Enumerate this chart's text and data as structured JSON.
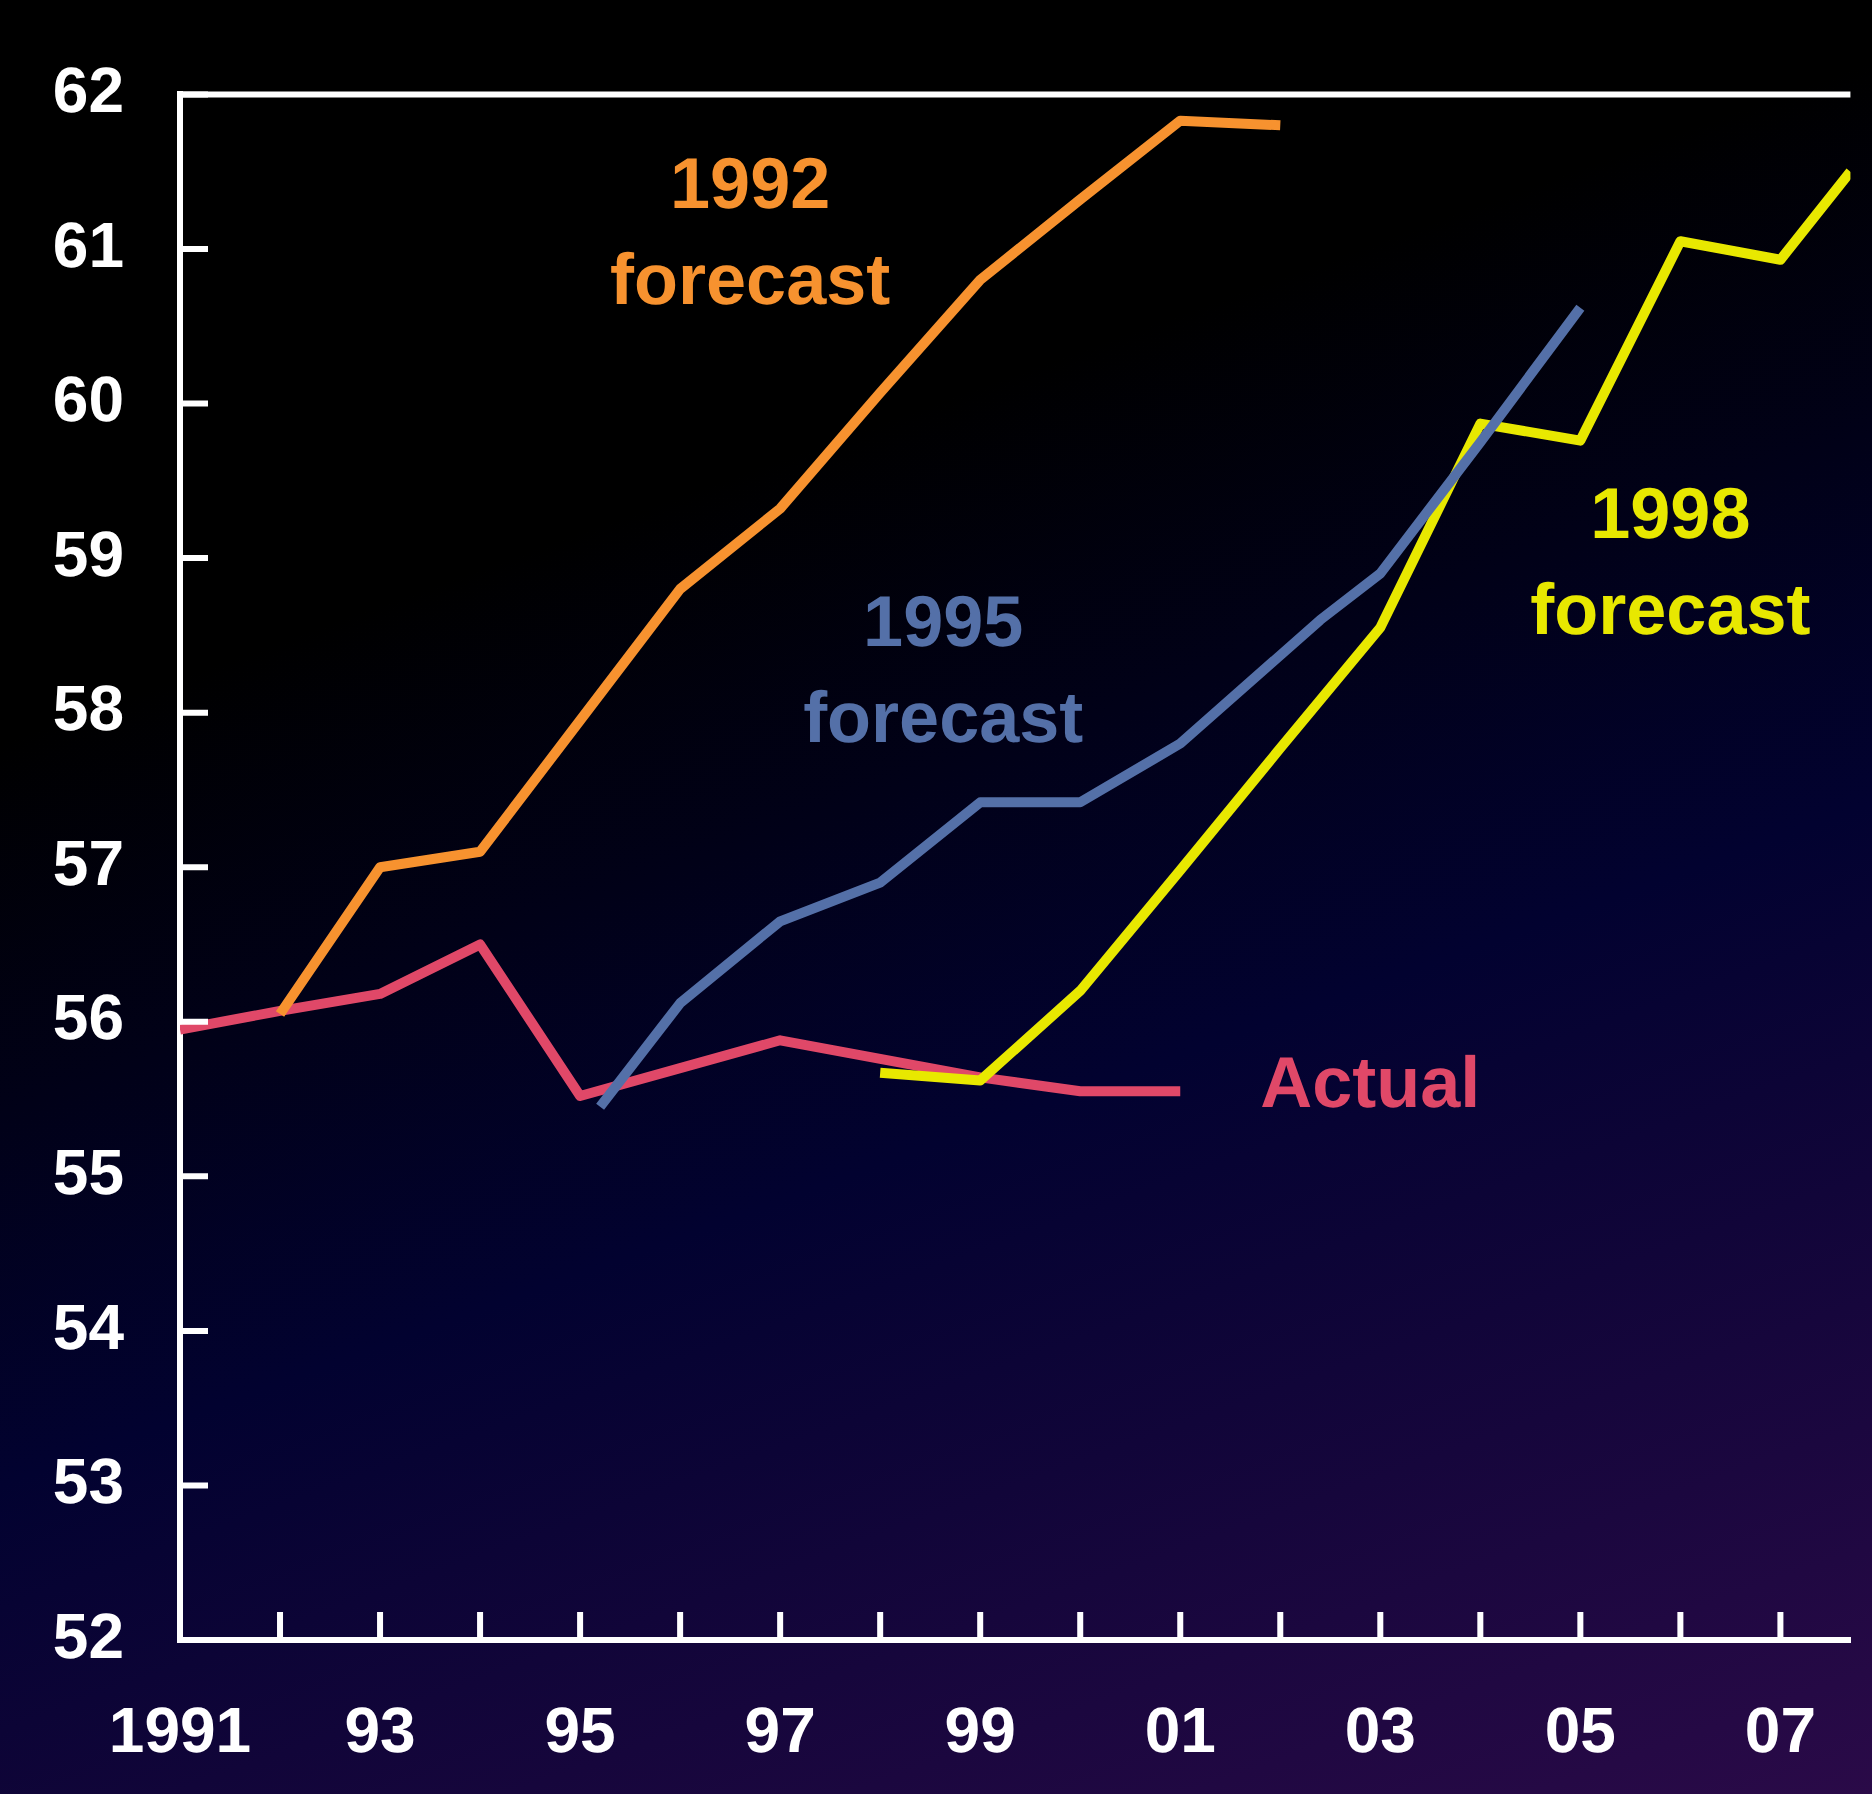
{
  "chart_data": {
    "type": "line",
    "xlim": [
      1991,
      2007.7
    ],
    "ylim": [
      52,
      62
    ],
    "xticks": [
      {
        "value": 1991,
        "label": "1991"
      },
      {
        "value": 1992,
        "label": null
      },
      {
        "value": 1993,
        "label": "93"
      },
      {
        "value": 1994,
        "label": null
      },
      {
        "value": 1995,
        "label": "95"
      },
      {
        "value": 1996,
        "label": null
      },
      {
        "value": 1997,
        "label": "97"
      },
      {
        "value": 1998,
        "label": null
      },
      {
        "value": 1999,
        "label": "99"
      },
      {
        "value": 2000,
        "label": null
      },
      {
        "value": 2001,
        "label": "01"
      },
      {
        "value": 2002,
        "label": null
      },
      {
        "value": 2003,
        "label": "03"
      },
      {
        "value": 2004,
        "label": null
      },
      {
        "value": 2005,
        "label": "05"
      },
      {
        "value": 2006,
        "label": null
      },
      {
        "value": 2007,
        "label": "07"
      }
    ],
    "yticks": [
      52,
      53,
      54,
      55,
      56,
      57,
      58,
      59,
      60,
      61,
      62
    ],
    "grid": false,
    "legend": false,
    "marker": "none",
    "line_style": "solid",
    "series": [
      {
        "name": "1992 forecast",
        "color": "#f7922f",
        "x": [
          1992,
          1993,
          1994,
          1995,
          1996,
          1997,
          1998,
          1999,
          2000,
          2001,
          2002
        ],
        "values": [
          56.05,
          57.0,
          57.1,
          57.95,
          58.8,
          59.32,
          60.07,
          60.8,
          61.32,
          61.83,
          61.8
        ]
      },
      {
        "name": "1995 forecast",
        "color": "#5470a8",
        "x": [
          1995.2,
          1996,
          1997,
          1998,
          1999,
          2000,
          2001,
          2002.4,
          2003,
          2004,
          2005
        ],
        "values": [
          55.45,
          56.12,
          56.65,
          56.9,
          57.42,
          57.42,
          57.8,
          58.6,
          58.9,
          59.75,
          60.62
        ]
      },
      {
        "name": "1998 forecast",
        "color": "#e8e800",
        "x": [
          1998,
          1999,
          2000,
          2001,
          2002,
          2003,
          2004,
          2005,
          2006,
          2007,
          2007.7
        ],
        "values": [
          55.67,
          55.62,
          56.2,
          56.98,
          57.77,
          58.55,
          59.87,
          59.76,
          61.05,
          60.93,
          61.5
        ]
      },
      {
        "name": "Actual",
        "color": "#e04868",
        "x": [
          1991,
          1992,
          1993,
          1994,
          1995,
          1996,
          1997,
          1998,
          1999,
          2000,
          2001
        ],
        "values": [
          55.95,
          56.07,
          56.18,
          56.5,
          55.52,
          55.7,
          55.88,
          55.76,
          55.64,
          55.55,
          55.55
        ]
      }
    ]
  }
}
